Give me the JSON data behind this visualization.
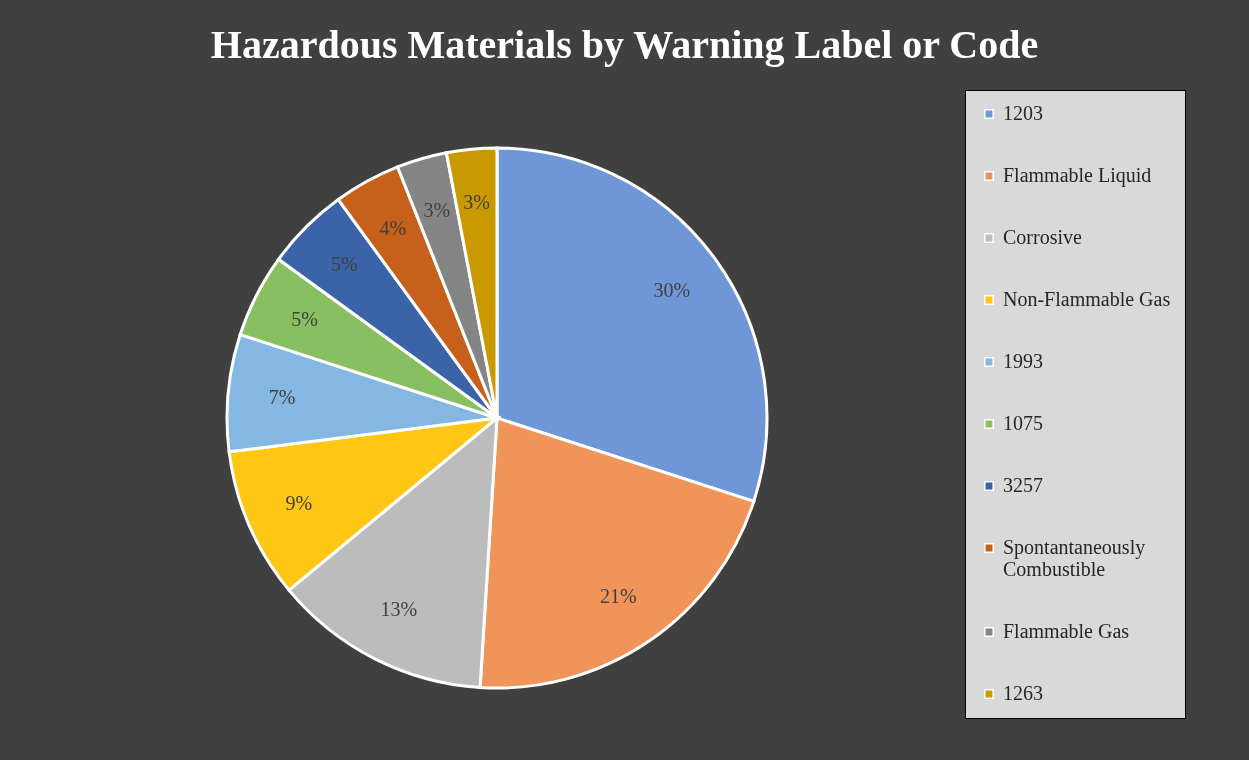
{
  "chart_data": {
    "type": "pie",
    "title": "Hazardous Materials by Warning Label or Code",
    "categories": [
      "1203",
      "Flammable Liquid",
      "Corrosive",
      "Non-Flammable Gas",
      "1993",
      "1075",
      "3257",
      "Spontantaneously Combustible",
      "Flammable Gas",
      "1263"
    ],
    "values": [
      30,
      21,
      13,
      9,
      7,
      5,
      5,
      4,
      3,
      3
    ],
    "value_labels": [
      "30%",
      "21%",
      "13%",
      "9%",
      "7%",
      "5%",
      "5%",
      "4%",
      "3%",
      "3%"
    ],
    "colors": [
      "#6f97d8",
      "#f0945a",
      "#bcbcbc",
      "#ffc614",
      "#84b7e2",
      "#88c061",
      "#3a63a8",
      "#c7601a",
      "#858585",
      "#c89a00"
    ],
    "legend": "right"
  }
}
